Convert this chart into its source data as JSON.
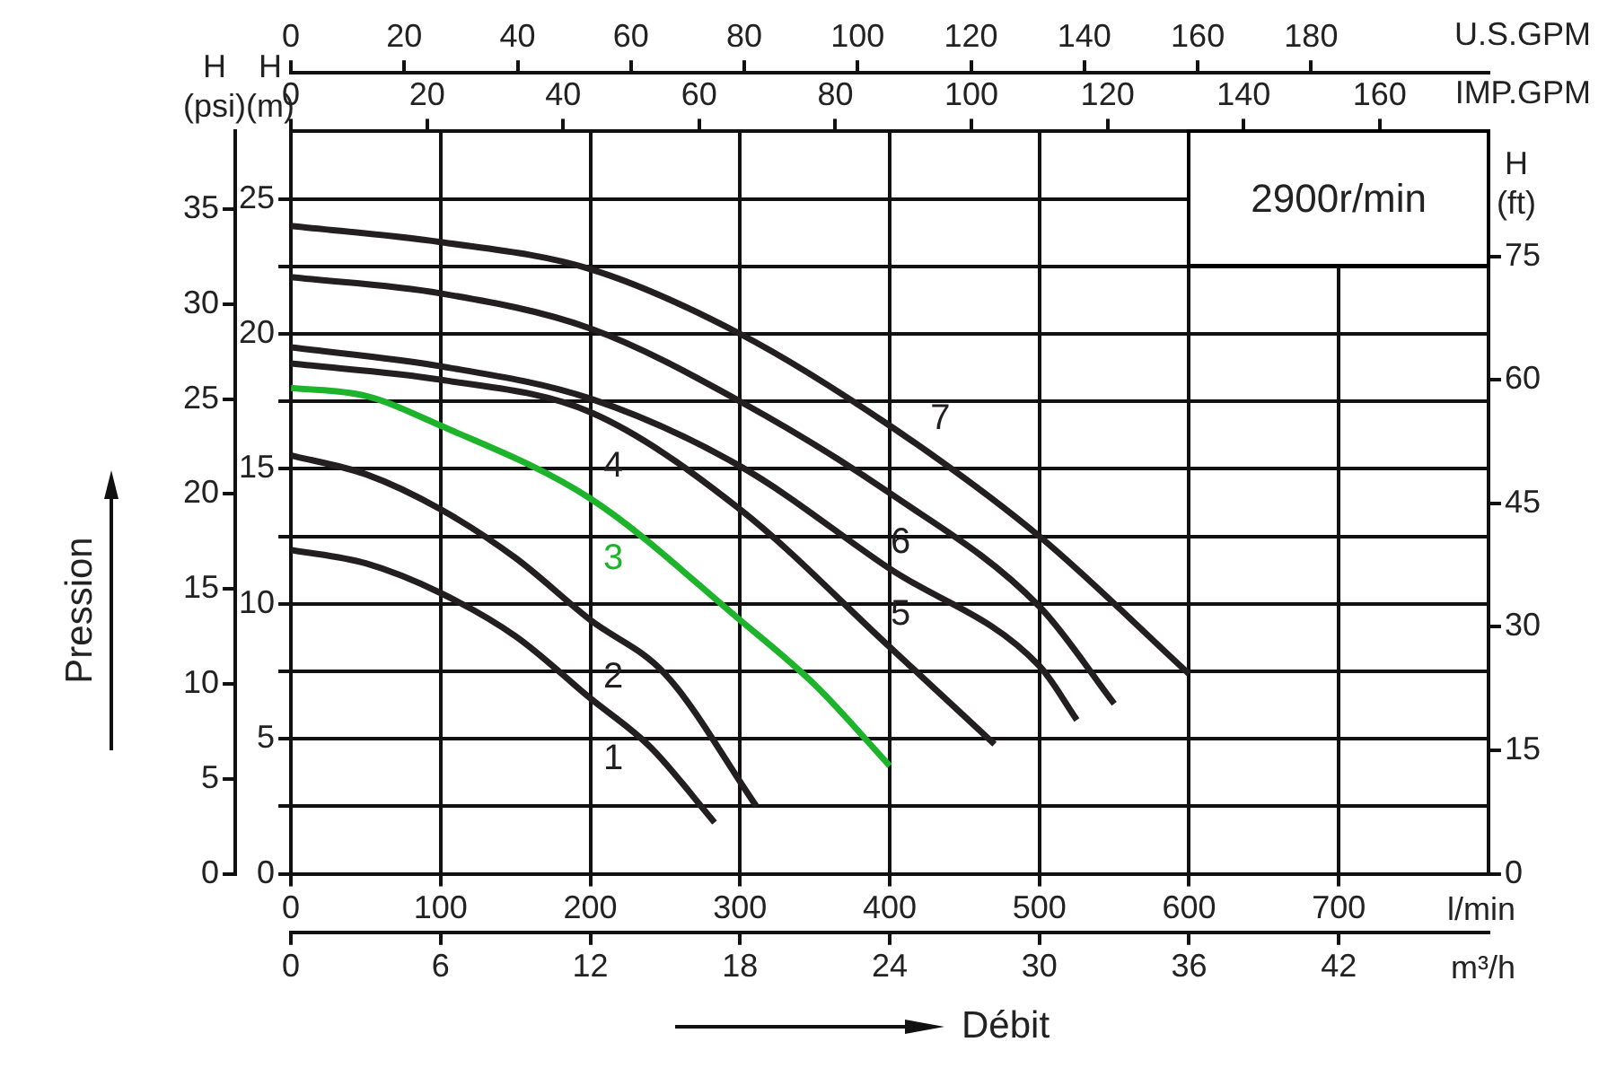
{
  "chart_data": {
    "type": "line",
    "xlabel": "l/min",
    "ylabel": "H (m)",
    "x2label": "U.S.GPM",
    "y2label": "H (psi)",
    "y3label": "H (ft)",
    "annotations": [
      "2900r/min",
      "Pression",
      "Débit",
      "IMP.GPM",
      "m³/h",
      "0",
      "6",
      "12",
      "18",
      "24",
      "30",
      "36",
      "42",
      "0",
      "20",
      "40",
      "60",
      "80",
      "100",
      "120",
      "140",
      "160"
    ],
    "xlim": [
      0,
      800
    ],
    "xticks": [
      0,
      100,
      200,
      300,
      400,
      500,
      600,
      700
    ],
    "x2lim": [
      0,
      211.3
    ],
    "x2ticks": [
      0,
      20,
      40,
      60,
      80,
      100,
      120,
      140,
      160,
      180
    ],
    "ylim": [
      0,
      27.5
    ],
    "yticks": [
      0,
      {
        "value": 2.5,
        "label": null
      },
      5,
      {
        "value": 7.5,
        "label": null
      },
      10,
      {
        "value": 12.5,
        "label": null
      },
      15,
      {
        "value": 17.5,
        "label": null
      },
      20,
      {
        "value": 22.5,
        "label": null
      },
      25
    ],
    "y2lim": [
      0,
      39.1
    ],
    "y2ticks": [
      0,
      5,
      10,
      15,
      20,
      25,
      30,
      35
    ],
    "y3lim": [
      0,
      90.2
    ],
    "y3ticks": [
      0,
      15,
      30,
      45,
      60,
      75
    ],
    "grid": true,
    "legend": false,
    "marker": "none",
    "line_style": "solid",
    "series": [
      {
        "name": "1",
        "color": "#231f20",
        "x": [
          0,
          50,
          100,
          150,
          200,
          240,
          283
        ],
        "values": [
          12.0,
          11.5,
          10.4,
          8.8,
          6.5,
          4.7,
          1.9
        ]
      },
      {
        "name": "2",
        "color": "#231f20",
        "x": [
          0,
          50,
          100,
          150,
          200,
          250,
          311
        ],
        "values": [
          15.5,
          14.8,
          13.5,
          11.7,
          9.4,
          7.4,
          2.5
        ]
      },
      {
        "name": "3",
        "color": "#1db32a",
        "x": [
          0,
          50,
          100,
          200,
          300,
          350,
          400
        ],
        "values": [
          18.0,
          17.7,
          16.6,
          13.9,
          9.4,
          7.0,
          4.0
        ]
      },
      {
        "name": "4",
        "color": "#231f20",
        "x": [
          0,
          100,
          200,
          300,
          400,
          470
        ],
        "values": [
          18.9,
          18.3,
          17.1,
          13.5,
          8.4,
          4.8
        ]
      },
      {
        "name": "5",
        "color": "#231f20",
        "x": [
          0,
          100,
          200,
          300,
          400,
          500,
          525
        ],
        "values": [
          19.5,
          18.8,
          17.6,
          15.1,
          11.3,
          7.7,
          5.7
        ]
      },
      {
        "name": "6",
        "color": "#231f20",
        "x": [
          0,
          100,
          200,
          300,
          400,
          500,
          550
        ],
        "values": [
          22.1,
          21.5,
          20.2,
          17.5,
          14.1,
          9.9,
          6.3
        ]
      },
      {
        "name": "7",
        "color": "#231f20",
        "x": [
          0,
          100,
          200,
          300,
          400,
          500,
          600
        ],
        "values": [
          24.0,
          23.4,
          22.4,
          20.0,
          16.6,
          12.5,
          7.4
        ]
      }
    ]
  }
}
